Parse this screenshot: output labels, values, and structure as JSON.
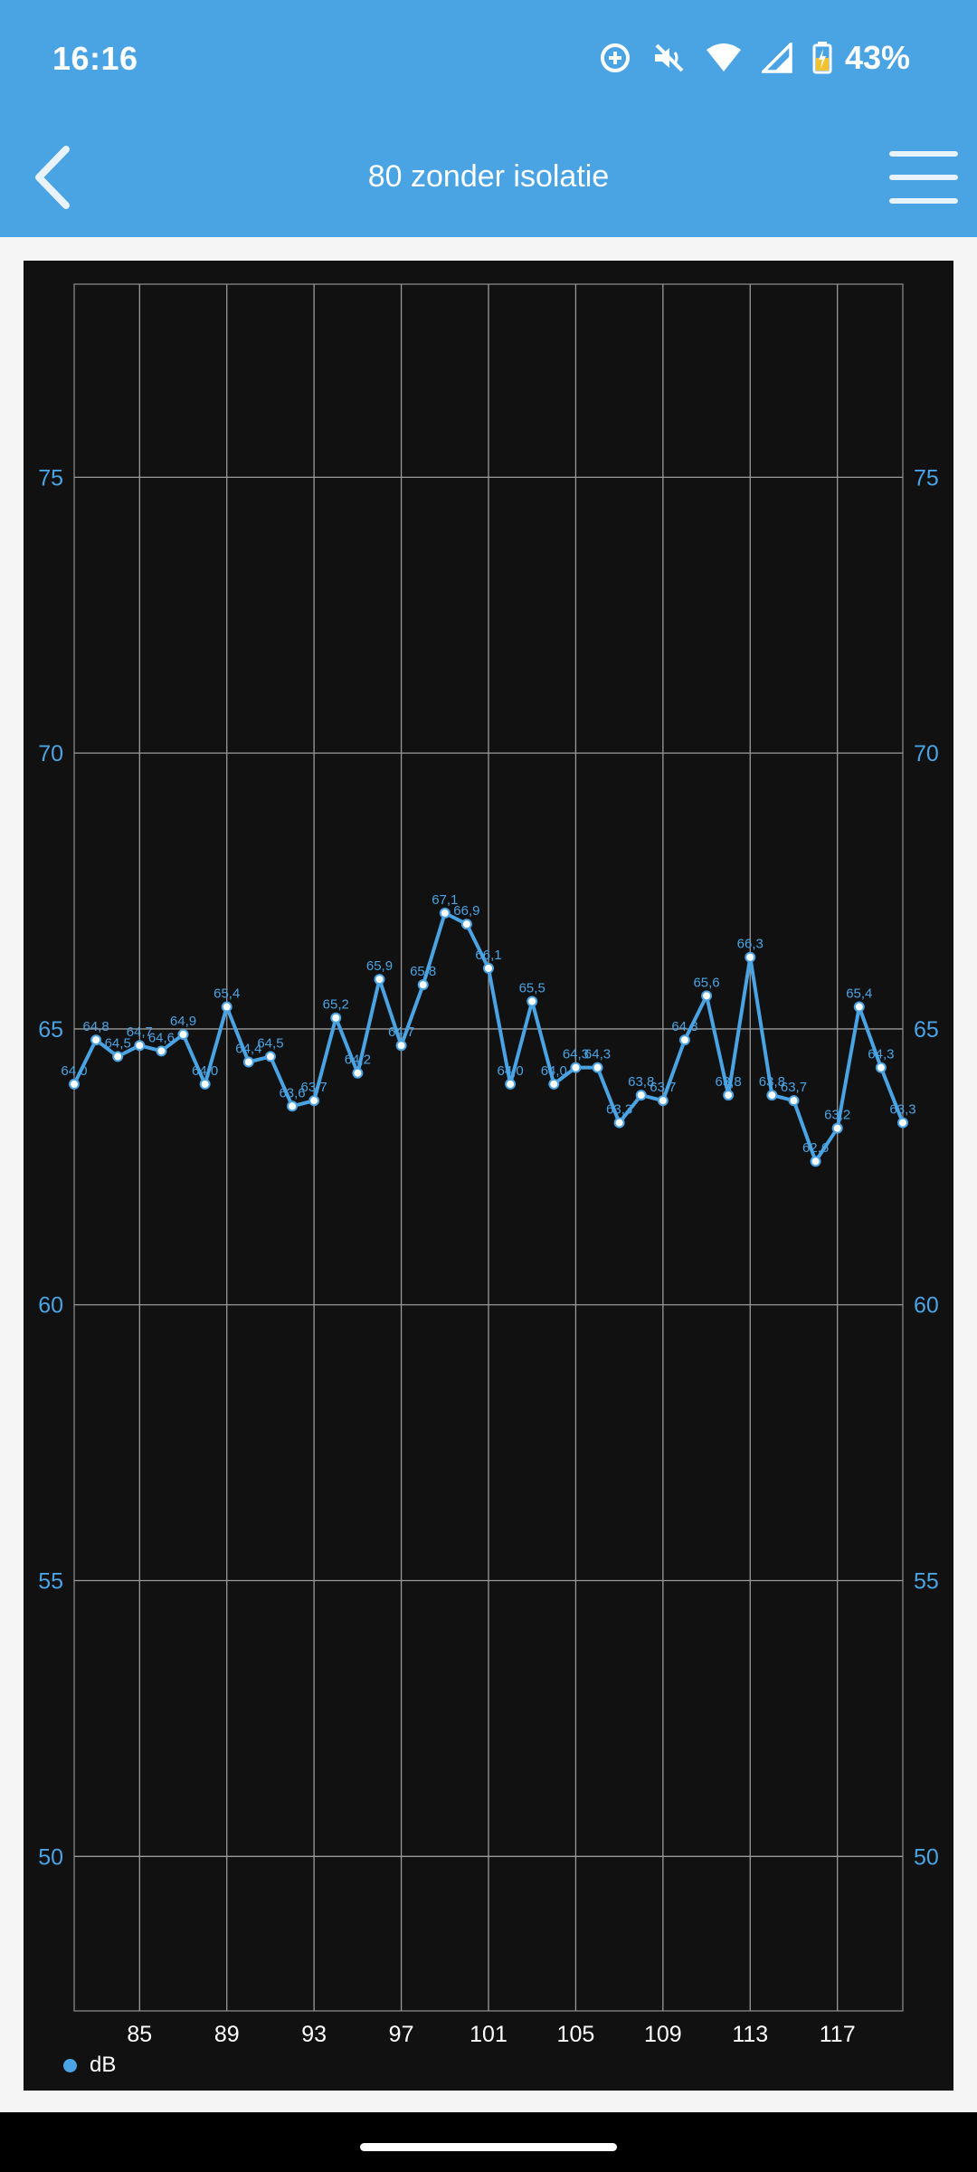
{
  "status": {
    "time": "16:16",
    "battery_percent": "43%",
    "icons": [
      "data-saver-icon",
      "vibrate-off-icon",
      "wifi-icon",
      "signal-icon",
      "battery-charging-icon"
    ]
  },
  "app_bar": {
    "title": "80 zonder isolatie",
    "back_icon": "chevron-left-icon",
    "menu_icon": "menu-icon"
  },
  "colors": {
    "accent": "#4aa3e3",
    "chart_bg": "#111111",
    "grid": "#9a9a9a"
  },
  "chart_data": {
    "type": "line",
    "x": [
      82,
      83,
      84,
      85,
      86,
      87,
      88,
      89,
      90,
      91,
      92,
      93,
      94,
      95,
      96,
      97,
      98,
      99,
      100,
      101,
      102,
      103,
      104,
      105,
      106,
      107,
      108,
      109,
      110,
      111,
      112,
      113,
      114,
      115,
      116,
      117,
      118,
      119,
      120
    ],
    "series": [
      {
        "name": "dB",
        "values": [
          64.0,
          64.8,
          64.5,
          64.7,
          64.6,
          64.9,
          64.0,
          65.4,
          64.4,
          64.5,
          63.6,
          63.7,
          65.2,
          64.2,
          65.9,
          64.7,
          65.8,
          67.1,
          66.9,
          66.1,
          64.0,
          65.5,
          64.0,
          64.3,
          64.3,
          63.3,
          63.8,
          63.7,
          64.8,
          65.6,
          63.8,
          66.3,
          63.8,
          63.7,
          62.6,
          63.2,
          65.4,
          64.3,
          63.3
        ],
        "labels": [
          "64,0",
          "64,8",
          "64,5",
          "64,7",
          "64,6",
          "64,9",
          "64,0",
          "65,4",
          "64,4",
          "64,5",
          "63,6",
          "63,7",
          "65,2",
          "64,2",
          "65,9",
          "64,7",
          "65,8",
          "67,1",
          "66,9",
          "66,1",
          "64,0",
          "65,5",
          "64,0",
          "64,3",
          "64,3",
          "63,3",
          "63,8",
          "63,7",
          "64,8",
          "65,6",
          "63,8",
          "66,3",
          "63,8",
          "63,7",
          "62,6",
          "63,2",
          "65,4",
          "64,3",
          "63,3"
        ]
      }
    ],
    "x_ticks": [
      "85",
      "89",
      "93",
      "97",
      "101",
      "105",
      "109",
      "113",
      "117"
    ],
    "x_tick_values": [
      85,
      89,
      93,
      97,
      101,
      105,
      109,
      113,
      117
    ],
    "y_ticks": [
      "50",
      "55",
      "60",
      "65",
      "70",
      "75"
    ],
    "y_tick_values": [
      50,
      55,
      60,
      65,
      70,
      75
    ],
    "xlim": [
      82,
      120
    ],
    "ylim": [
      47.2,
      78.5
    ],
    "legend": "dB",
    "legend_position": "bottom-left",
    "grid": true,
    "dual_y_axis": true
  }
}
